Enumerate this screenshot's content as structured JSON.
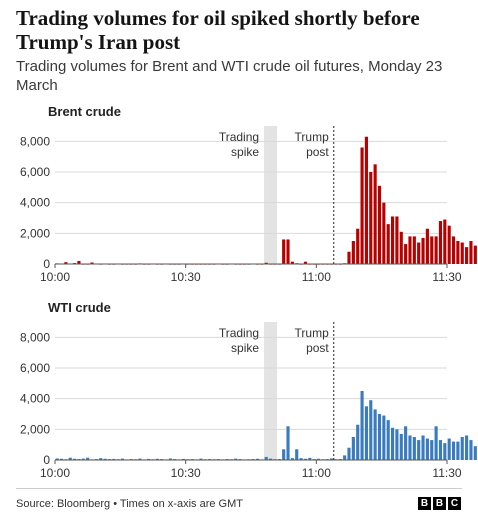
{
  "title": "Trading volumes for oil spiked shortly before Trump's Iran post",
  "subtitle": "Trading volumes for Brent and WTI crude oil futures, Monday 23 March",
  "footer": {
    "source": "Source: Bloomberg • Times on x-axis are GMT",
    "logo_letters": [
      "B",
      "B",
      "C"
    ]
  },
  "colors": {
    "brent": "#b80000",
    "wti": "#3a7bbf",
    "spike_band": "#e3e3e3"
  },
  "chart_data": [
    {
      "type": "bar",
      "title": "Brent crude",
      "color": "#b80000",
      "x_start": "10:00",
      "x_interval_minutes": 1,
      "xlim": [
        "10:00",
        "11:30"
      ],
      "x_ticks": [
        "10:00",
        "10:30",
        "11:00",
        "11:30"
      ],
      "ylim": [
        0,
        9000
      ],
      "y_ticks": [
        0,
        2000,
        4000,
        6000,
        8000
      ],
      "y_tick_labels": [
        "0",
        "2,000",
        "4,000",
        "6,000",
        "8,000"
      ],
      "grid": true,
      "annotations": [
        {
          "label": [
            "Trading",
            "spike"
          ],
          "type": "band",
          "x_from": "10:48",
          "x_to": "10:51"
        },
        {
          "label": [
            "Trump",
            "post"
          ],
          "type": "line",
          "x": "11:04"
        }
      ],
      "values": [
        40,
        30,
        120,
        20,
        60,
        200,
        10,
        10,
        100,
        20,
        10,
        30,
        10,
        10,
        20,
        10,
        10,
        10,
        10,
        40,
        10,
        10,
        30,
        10,
        10,
        30,
        10,
        10,
        10,
        20,
        10,
        10,
        10,
        10,
        10,
        10,
        10,
        20,
        10,
        10,
        20,
        10,
        10,
        10,
        10,
        20,
        10,
        10,
        80,
        10,
        10,
        10,
        1600,
        1600,
        150,
        50,
        10,
        150,
        10,
        10,
        10,
        10,
        10,
        10,
        10,
        10,
        50,
        800,
        1500,
        2300,
        7600,
        8300,
        6000,
        6500,
        5100,
        4000,
        2600,
        3100,
        3100,
        2100,
        1300,
        1800,
        1800,
        1400,
        1700,
        2300,
        1800,
        1800,
        2800,
        2900,
        2500,
        1800,
        1500,
        1400,
        1100,
        1500,
        1200,
        1000
      ]
    },
    {
      "type": "bar",
      "title": "WTI crude",
      "color": "#3a7bbf",
      "x_start": "10:00",
      "x_interval_minutes": 1,
      "xlim": [
        "10:00",
        "11:30"
      ],
      "x_ticks": [
        "10:00",
        "10:30",
        "11:00",
        "11:30"
      ],
      "ylim": [
        0,
        9000
      ],
      "y_ticks": [
        0,
        2000,
        4000,
        6000,
        8000
      ],
      "y_tick_labels": [
        "0",
        "2,000",
        "4,000",
        "6,000",
        "8,000"
      ],
      "grid": true,
      "annotations": [
        {
          "label": [
            "Trading",
            "spike"
          ],
          "type": "band",
          "x_from": "10:48",
          "x_to": "10:51"
        },
        {
          "label": [
            "Trump",
            "post"
          ],
          "type": "line",
          "x": "11:04"
        }
      ],
      "values": [
        100,
        80,
        50,
        150,
        80,
        60,
        90,
        150,
        40,
        60,
        120,
        80,
        60,
        70,
        50,
        90,
        40,
        60,
        50,
        90,
        40,
        70,
        50,
        80,
        60,
        40,
        100,
        60,
        40,
        70,
        50,
        60,
        40,
        90,
        50,
        60,
        50,
        60,
        40,
        60,
        50,
        90,
        60,
        40,
        50,
        60,
        80,
        40,
        200,
        90,
        50,
        60,
        700,
        2200,
        120,
        700,
        120,
        80,
        140,
        60,
        80,
        50,
        60,
        100,
        50,
        60,
        300,
        800,
        1500,
        2300,
        4500,
        3500,
        3900,
        3300,
        3000,
        2900,
        2600,
        2100,
        2000,
        1700,
        2200,
        1600,
        1500,
        1300,
        1600,
        1400,
        1300,
        2200,
        1300,
        1100,
        1400,
        1200,
        1200,
        1500,
        1600,
        1300,
        900,
        1100
      ]
    }
  ]
}
